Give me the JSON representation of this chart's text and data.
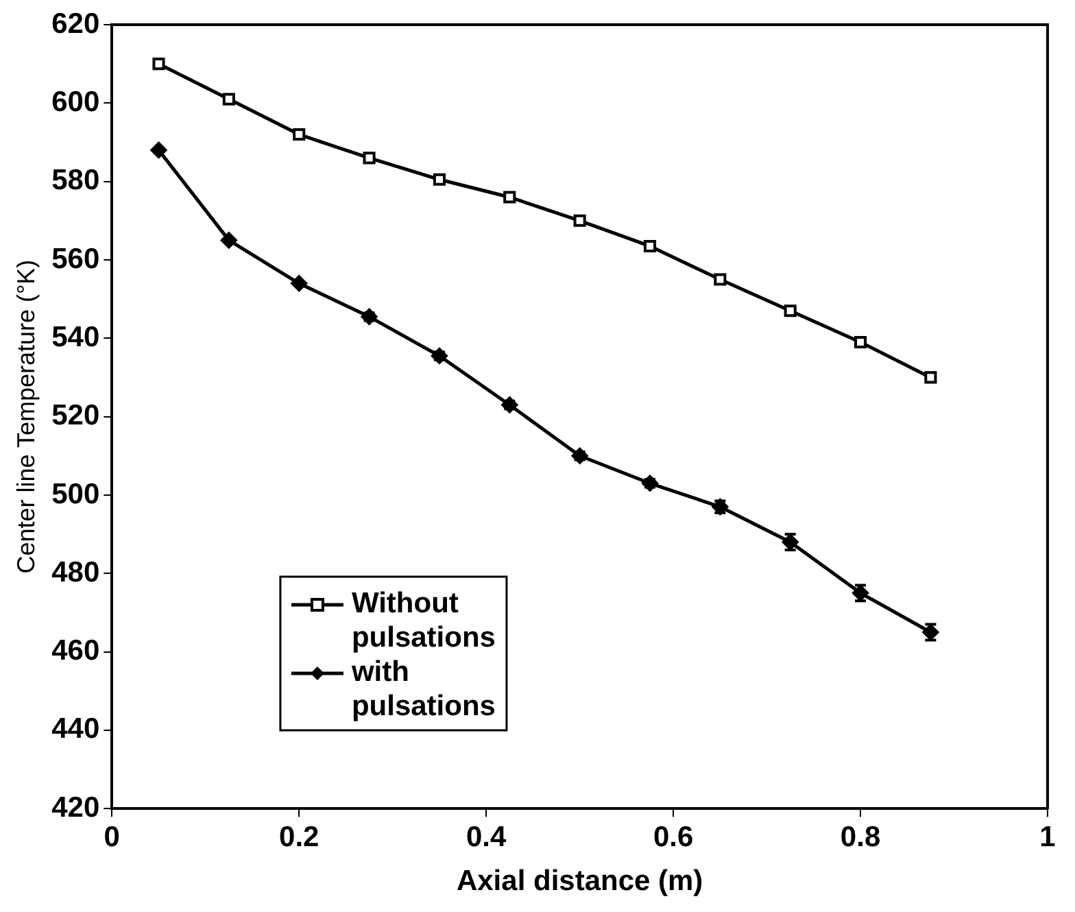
{
  "chart_data": {
    "type": "line",
    "xlabel": "Axial distance (m)",
    "ylabel": "Center line Temperature (°K)",
    "x": [
      0.05,
      0.125,
      0.2,
      0.275,
      0.35,
      0.425,
      0.5,
      0.575,
      0.65,
      0.725,
      0.8,
      0.875
    ],
    "series": [
      {
        "name": "Without pulsations",
        "color": "#000000",
        "marker": "square",
        "values": [
          610,
          601,
          592,
          586,
          580.5,
          576,
          570,
          563.5,
          555,
          547,
          539,
          530
        ]
      },
      {
        "name": "with pulsations",
        "color": "#000000",
        "marker": "diamond",
        "values": [
          588,
          565,
          554,
          545.5,
          535.5,
          523,
          510,
          503,
          497,
          488,
          475,
          465
        ],
        "errors": [
          null,
          null,
          null,
          1,
          1,
          1,
          1,
          1,
          1.5,
          2,
          2,
          2
        ]
      }
    ],
    "xlim": [
      0,
      1
    ],
    "xticks": [
      0,
      0.2,
      0.4,
      0.6,
      0.8,
      1
    ],
    "ylim": [
      420,
      620
    ],
    "yticks": [
      420,
      440,
      460,
      480,
      500,
      520,
      540,
      560,
      580,
      600,
      620
    ],
    "grid": false,
    "legend": "bottom left",
    "line_style": "solid"
  }
}
